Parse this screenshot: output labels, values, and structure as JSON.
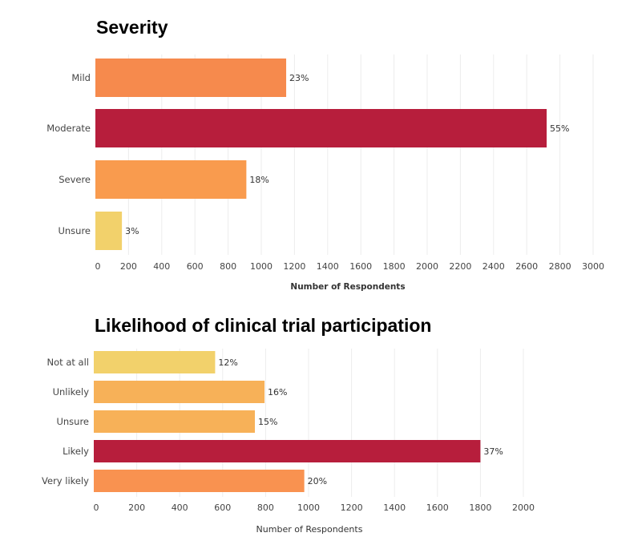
{
  "chart_data": [
    {
      "type": "bar",
      "orientation": "horizontal",
      "title": "Severity",
      "xlabel": "Number of Respondents",
      "ylabel": "",
      "categories": [
        "Mild",
        "Moderate",
        "Severe",
        "Unsure"
      ],
      "values": [
        1150,
        2720,
        910,
        160
      ],
      "labels": [
        "23%",
        "55%",
        "18%",
        "3%"
      ],
      "colors": [
        "#F68A4D",
        "#B71E3C",
        "#F99B4E",
        "#F2D16B"
      ],
      "ticks": [
        "0",
        "200",
        "400",
        "600",
        "800",
        "1000",
        "1200",
        "1400",
        "1600",
        "1800",
        "2000",
        "2200",
        "2400",
        "2600",
        "2800",
        "3000"
      ],
      "xlim": [
        0,
        3000
      ],
      "grid": true
    },
    {
      "type": "bar",
      "orientation": "horizontal",
      "title": "Likelihood of clinical trial participation",
      "xlabel": "Number of Respondents",
      "ylabel": "",
      "categories": [
        "Not at all",
        "Unlikely",
        "Unsure",
        "Likely",
        "Very likely"
      ],
      "values": [
        565,
        795,
        750,
        1800,
        980
      ],
      "labels": [
        "12%",
        "16%",
        "15%",
        "37%",
        "20%"
      ],
      "colors": [
        "#F2D16B",
        "#F7B158",
        "#F7B158",
        "#B71E3C",
        "#F99250"
      ],
      "ticks": [
        "0",
        "200",
        "400",
        "600",
        "800",
        "1000",
        "1200",
        "1400",
        "1600",
        "1800",
        "2000"
      ],
      "xlim": [
        0,
        2000
      ],
      "grid": true
    }
  ]
}
